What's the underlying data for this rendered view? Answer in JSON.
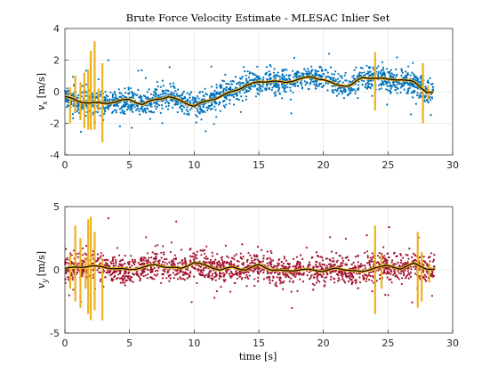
{
  "chart_data": [
    {
      "type": "scatter",
      "title": "Brute Force Velocity Estimate - MLESAC Inlier Set",
      "ylabel_main": "v",
      "ylabel_sub": "x",
      "ylabel_unit": "[m/s]",
      "xlim": [
        0,
        30
      ],
      "ylim": [
        -4,
        4
      ],
      "xticks": [
        "0",
        "5",
        "10",
        "15",
        "20",
        "25",
        "30"
      ],
      "yticks": [
        "-4",
        "-2",
        "0",
        "2",
        "4"
      ],
      "ytick_values": [
        -4,
        -2,
        0,
        2,
        4
      ],
      "grid": true,
      "colors": {
        "scatter": "#0072BD",
        "band": "#EDB120",
        "line": "#000000"
      },
      "scatter_spread": 0.55,
      "estimate_points": [
        [
          0,
          -0.3
        ],
        [
          1,
          -0.6
        ],
        [
          2,
          -0.7
        ],
        [
          3,
          -0.75
        ],
        [
          4,
          -0.6
        ],
        [
          5,
          -0.5
        ],
        [
          6,
          -0.8
        ],
        [
          7,
          -0.5
        ],
        [
          8,
          -0.3
        ],
        [
          9,
          -0.6
        ],
        [
          10,
          -0.9
        ],
        [
          11,
          -0.6
        ],
        [
          12,
          -0.3
        ],
        [
          13,
          0.0
        ],
        [
          14,
          0.4
        ],
        [
          15,
          0.6
        ],
        [
          16,
          0.7
        ],
        [
          17,
          0.55
        ],
        [
          18,
          0.8
        ],
        [
          19,
          0.9
        ],
        [
          20,
          0.8
        ],
        [
          21,
          0.4
        ],
        [
          22,
          0.4
        ],
        [
          23,
          0.85
        ],
        [
          24,
          0.9
        ],
        [
          25,
          0.75
        ],
        [
          26,
          0.8
        ],
        [
          27,
          0.6
        ],
        [
          28,
          0.0
        ],
        [
          28.5,
          -0.05
        ]
      ],
      "spikes": [
        [
          0.4,
          -2.0,
          0.3
        ],
        [
          0.8,
          -1.3,
          1.0
        ],
        [
          1.2,
          -1.8,
          0.6
        ],
        [
          1.5,
          -2.3,
          1.2
        ],
        [
          1.8,
          -2.4,
          1.4
        ],
        [
          2.0,
          -2.4,
          2.6
        ],
        [
          2.3,
          -2.4,
          3.2
        ],
        [
          2.6,
          -1.2,
          0.2
        ],
        [
          2.9,
          -3.2,
          1.8
        ],
        [
          24.0,
          -1.2,
          2.5
        ],
        [
          27.7,
          -2.0,
          1.8
        ],
        [
          28.1,
          -0.5,
          0.4
        ]
      ]
    },
    {
      "type": "scatter",
      "xlabel": "time [s]",
      "ylabel_main": "v",
      "ylabel_sub": "y",
      "ylabel_unit": "[m/s]",
      "xlim": [
        0,
        30
      ],
      "ylim": [
        -5,
        5
      ],
      "xticks": [
        "0",
        "5",
        "10",
        "15",
        "20",
        "25",
        "30"
      ],
      "yticks": [
        "-5",
        "0",
        "5"
      ],
      "ytick_values": [
        -5,
        0,
        5
      ],
      "grid": true,
      "colors": {
        "scatter": "#A2142F",
        "band": "#EDB120",
        "line": "#000000"
      },
      "scatter_spread": 0.8,
      "estimate_points": [
        [
          0,
          0.1
        ],
        [
          1,
          0.2
        ],
        [
          2,
          0.3
        ],
        [
          3,
          0.2
        ],
        [
          4,
          0.1
        ],
        [
          5,
          0.0
        ],
        [
          6,
          0.2
        ],
        [
          7,
          0.4
        ],
        [
          8,
          0.2
        ],
        [
          9,
          0.1
        ],
        [
          10,
          0.6
        ],
        [
          11,
          0.3
        ],
        [
          12,
          0.0
        ],
        [
          13,
          0.2
        ],
        [
          14,
          0.0
        ],
        [
          15,
          0.4
        ],
        [
          16,
          0.0
        ],
        [
          17,
          -0.1
        ],
        [
          18,
          0.0
        ],
        [
          19,
          0.0
        ],
        [
          20,
          -0.1
        ],
        [
          21,
          0.1
        ],
        [
          22,
          0.0
        ],
        [
          23,
          -0.2
        ],
        [
          24,
          0.2
        ],
        [
          25,
          0.3
        ],
        [
          26,
          0.1
        ],
        [
          27,
          0.5
        ],
        [
          28,
          0.1
        ],
        [
          28.6,
          0.0
        ]
      ],
      "spikes": [
        [
          0.4,
          -1.5,
          1.2
        ],
        [
          0.8,
          -2.5,
          3.5
        ],
        [
          1.2,
          -3.0,
          2.5
        ],
        [
          1.6,
          -1.5,
          1.0
        ],
        [
          1.8,
          -3.5,
          4.0
        ],
        [
          2.0,
          -4.0,
          4.2
        ],
        [
          2.3,
          -3.2,
          3.0
        ],
        [
          2.9,
          -4.0,
          0.8
        ],
        [
          24.0,
          -3.5,
          3.5
        ],
        [
          24.5,
          -1.5,
          1.2
        ],
        [
          27.3,
          -3.0,
          3.0
        ],
        [
          27.6,
          -2.5,
          1.4
        ],
        [
          28.2,
          -1.0,
          0.5
        ]
      ]
    }
  ]
}
